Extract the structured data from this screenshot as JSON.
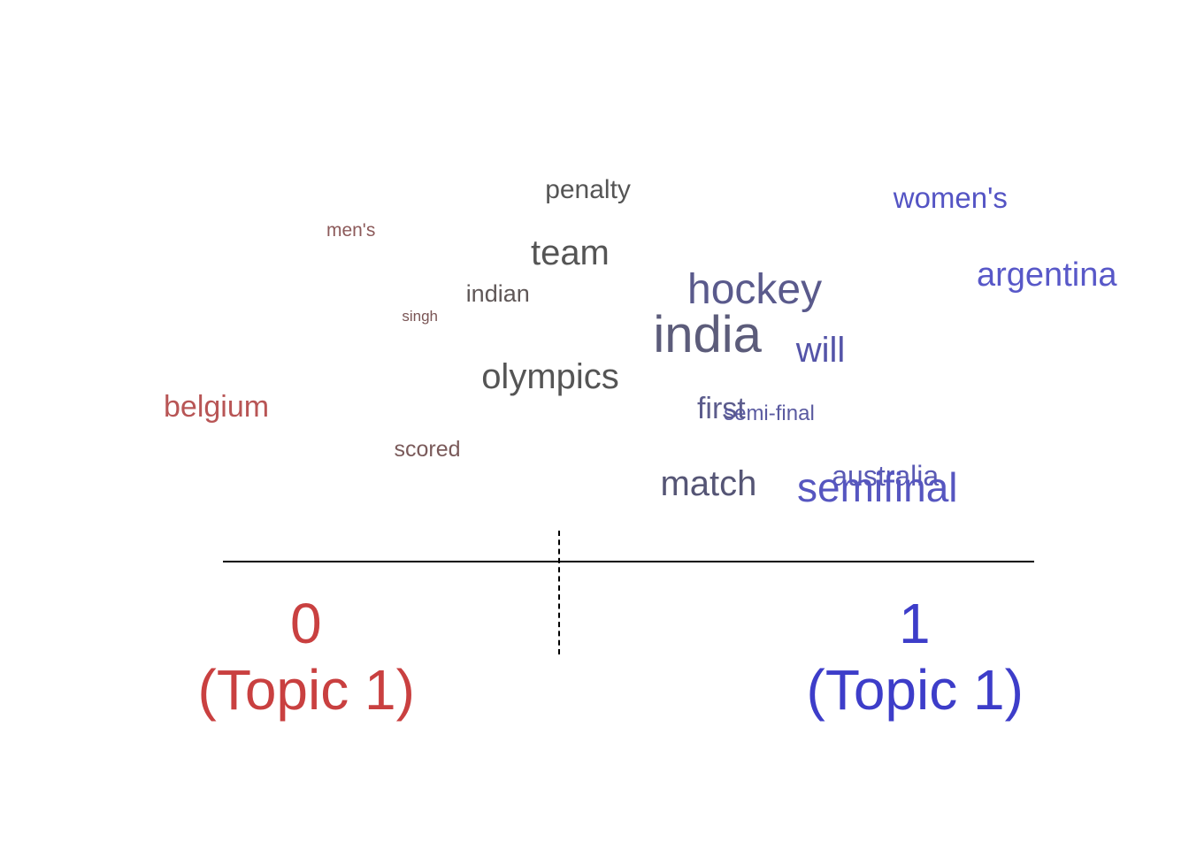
{
  "chart_data": {
    "type": "wordcloud",
    "title": "",
    "xlabel": "",
    "ylabel": "",
    "xlim": [
      0,
      1
    ],
    "x_ticks": [
      {
        "value": 0,
        "label": "0",
        "sublabel": "(Topic 1)",
        "color": "#c94040"
      },
      {
        "value": 1,
        "label": "1",
        "sublabel": "(Topic 1)",
        "color": "#3d3dc9"
      }
    ],
    "divider_value": 0.415,
    "words": [
      {
        "text": "penalty",
        "x": 0.44,
        "y": 0.905,
        "size": 30,
        "color": "#555555"
      },
      {
        "text": "women's",
        "x": 0.87,
        "y": 0.885,
        "size": 33,
        "color": "#5454c4"
      },
      {
        "text": "men's",
        "x": 0.18,
        "y": 0.8,
        "size": 21,
        "color": "#8c5a5a"
      },
      {
        "text": "team",
        "x": 0.42,
        "y": 0.74,
        "size": 40,
        "color": "#555555"
      },
      {
        "text": "argentina",
        "x": 1.0,
        "y": 0.68,
        "size": 38,
        "color": "#5858c8"
      },
      {
        "text": "hockey",
        "x": 0.64,
        "y": 0.64,
        "size": 48,
        "color": "#5a5a8c"
      },
      {
        "text": "indian",
        "x": 0.34,
        "y": 0.63,
        "size": 27,
        "color": "#5f5757"
      },
      {
        "text": "singh",
        "x": 0.26,
        "y": 0.57,
        "size": 17,
        "color": "#7a5555"
      },
      {
        "text": "india",
        "x": 0.58,
        "y": 0.52,
        "size": 58,
        "color": "#5c5c7a"
      },
      {
        "text": "will",
        "x": 0.7,
        "y": 0.48,
        "size": 40,
        "color": "#5454a8"
      },
      {
        "text": "olympics",
        "x": 0.39,
        "y": 0.41,
        "size": 40,
        "color": "#555555"
      },
      {
        "text": "belgium",
        "x": 0.0,
        "y": 0.33,
        "size": 34,
        "color": "#b85555"
      },
      {
        "text": "first",
        "x": 0.59,
        "y": 0.325,
        "size": 34,
        "color": "#5c5c8c"
      },
      {
        "text": "semi-final",
        "x": 0.65,
        "y": 0.31,
        "size": 24,
        "color": "#5a5aa0"
      },
      {
        "text": "scored",
        "x": 0.26,
        "y": 0.215,
        "size": 25,
        "color": "#7a5a5a"
      },
      {
        "text": "australia",
        "x": 0.79,
        "y": 0.145,
        "size": 32,
        "color": "#5a5ab4"
      },
      {
        "text": "match",
        "x": 0.58,
        "y": 0.125,
        "size": 40,
        "color": "#555575"
      },
      {
        "text": "semifinal",
        "x": 0.8,
        "y": 0.115,
        "size": 46,
        "color": "#5656c0"
      }
    ]
  }
}
